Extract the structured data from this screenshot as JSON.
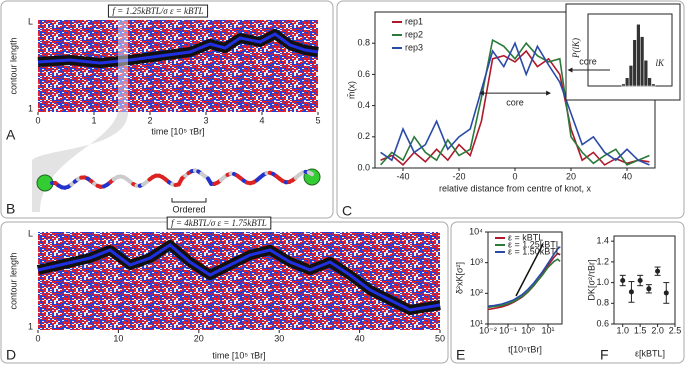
{
  "chart_data": [
    {
      "type": "heatmap",
      "label": "A",
      "title": "f = 1.25kBTL/σ   ε = kBTL",
      "xlabel": "time [10⁵ τBr]",
      "ylabel": "contour length",
      "ylabels": [
        "L",
        "1"
      ],
      "xlim": [
        0,
        5
      ],
      "xticks": [
        0,
        1,
        2,
        3,
        4,
        5
      ]
    },
    {
      "type": "line",
      "label": "C",
      "xlabel": "relative distance from centre of knot, x",
      "ylabel": "m̄(x)",
      "annotation": "core",
      "x": [
        -48,
        -44,
        -40,
        -36,
        -32,
        -28,
        -24,
        -20,
        -16,
        -12,
        -8,
        -4,
        0,
        4,
        8,
        12,
        16,
        20,
        24,
        28,
        32,
        36,
        40,
        44,
        48
      ],
      "series": [
        {
          "name": "rep1",
          "color": "#b0192b",
          "values": [
            0.05,
            0.08,
            0.02,
            0.1,
            0.04,
            0.12,
            0.05,
            0.15,
            0.08,
            0.3,
            0.7,
            0.72,
            0.68,
            0.75,
            0.65,
            0.7,
            0.6,
            0.25,
            0.05,
            0.1,
            0.02,
            0.06,
            0.03,
            0.05,
            0.04
          ]
        },
        {
          "name": "rep2",
          "color": "#2a7a3a",
          "values": [
            0.02,
            0.1,
            0.05,
            0.2,
            0.1,
            0.05,
            0.18,
            0.08,
            0.12,
            0.45,
            0.82,
            0.78,
            0.7,
            0.8,
            0.72,
            0.68,
            0.7,
            0.2,
            0.1,
            0.03,
            0.08,
            0.12,
            0.02,
            0.05,
            0.08
          ]
        },
        {
          "name": "rep3",
          "color": "#2b4aa8",
          "values": [
            0.1,
            0.05,
            0.25,
            0.1,
            0.15,
            0.3,
            0.12,
            0.2,
            0.25,
            0.5,
            0.75,
            0.65,
            0.8,
            0.6,
            0.78,
            0.66,
            0.55,
            0.35,
            0.15,
            0.2,
            0.1,
            0.05,
            0.12,
            0.05,
            0.02
          ]
        }
      ],
      "xlim": [
        -50,
        50
      ],
      "xticks": [
        -40,
        -20,
        0,
        20,
        40
      ],
      "ylim": [
        0,
        1
      ],
      "yticks": [
        {
          "value": 0,
          "label": "0.0"
        },
        0.2,
        0.4,
        0.6,
        0.8
      ]
    },
    {
      "type": "histogram",
      "xlabel": "lK",
      "ylabel": "P(lK)",
      "annotation": "core",
      "bins": [
        18,
        20,
        22,
        24,
        26,
        28,
        30,
        32,
        34,
        36
      ],
      "counts": [
        2,
        8,
        20,
        45,
        60,
        48,
        25,
        8,
        2
      ],
      "color": "#333333",
      "xlim": [
        0,
        45
      ],
      "ylim": [
        0,
        70
      ]
    },
    {
      "type": "heatmap",
      "label": "D",
      "title": "f = 4kBTL/σ ε = 1.75kBTL",
      "xlabel": "time [10⁵ τBr]",
      "ylabel": "contour length",
      "ylabels": [
        "L",
        "1"
      ],
      "xlim": [
        0,
        50
      ],
      "xticks": [
        0,
        10,
        20,
        30,
        40,
        50
      ]
    },
    {
      "type": "line",
      "label": "E",
      "xlabel": "t[10⁵τBr]",
      "ylabel": "δ²xK[σ²]",
      "xlog": true,
      "ylog": true,
      "x": [
        0.01,
        0.02,
        0.05,
        0.1,
        0.2,
        0.5,
        1,
        2,
        5,
        10,
        20,
        30,
        40
      ],
      "series": [
        {
          "name": "ε = kBTL",
          "color": "#b0192b",
          "values": [
            30,
            32,
            36,
            42,
            52,
            75,
            110,
            180,
            400,
            800,
            1500,
            2000,
            1800
          ]
        },
        {
          "name": "ε = 1.25kBTL",
          "color": "#2a7a3a",
          "values": [
            35,
            37,
            40,
            46,
            55,
            78,
            115,
            185,
            380,
            700,
            1100,
            1300,
            1100
          ]
        },
        {
          "name": "ε = 1.50kBTL",
          "color": "#2b4aa8",
          "values": [
            38,
            40,
            45,
            52,
            62,
            90,
            135,
            220,
            480,
            950,
            1900,
            2800,
            3300
          ]
        }
      ],
      "xlim": [
        0.01,
        50
      ],
      "xticks": [
        {
          "value": 0.01,
          "label": "10⁻²"
        },
        {
          "value": 0.1,
          "label": "10⁻¹"
        },
        {
          "value": 1,
          "label": "10⁰"
        },
        {
          "value": 10,
          "label": "10¹"
        }
      ],
      "ylim": [
        10,
        10000
      ],
      "yticks": [
        {
          "value": 10,
          "label": "10¹"
        },
        {
          "value": 100,
          "label": "10²"
        },
        {
          "value": 1000,
          "label": "10³"
        },
        {
          "value": 10000,
          "label": "10⁴"
        }
      ]
    },
    {
      "type": "errorbar",
      "label": "F",
      "xlabel": "ε[kBTL]",
      "ylabel": "DK[σ²/τBr]",
      "x": [
        1.0,
        1.25,
        1.5,
        1.75,
        2.0,
        2.25
      ],
      "values": [
        1.02,
        0.91,
        1.02,
        0.94,
        1.11,
        0.9
      ],
      "errors": [
        0.05,
        0.1,
        0.05,
        0.04,
        0.04,
        0.1
      ],
      "color": "#222222",
      "xlim": [
        0.75,
        2.5
      ],
      "xticks": [
        {
          "value": 1,
          "label": "1.0"
        },
        1.5,
        {
          "value": 2,
          "label": "2.0"
        },
        2.5
      ],
      "ylim": [
        0.6,
        1.45
      ],
      "yticks": [
        0.6,
        0.8,
        {
          "value": 1,
          "label": "1.0"
        },
        1.2,
        1.4
      ]
    }
  ],
  "diagram": {
    "label": "B",
    "annotation": "Ordered"
  }
}
